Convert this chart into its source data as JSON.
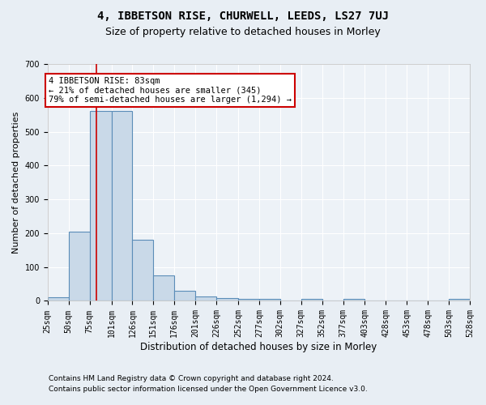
{
  "title": "4, IBBETSON RISE, CHURWELL, LEEDS, LS27 7UJ",
  "subtitle": "Size of property relative to detached houses in Morley",
  "xlabel": "Distribution of detached houses by size in Morley",
  "ylabel": "Number of detached properties",
  "bin_edges": [
    25,
    50,
    75,
    101,
    126,
    151,
    176,
    201,
    226,
    252,
    277,
    302,
    327,
    352,
    377,
    403,
    428,
    453,
    478,
    503,
    528
  ],
  "bar_heights": [
    10,
    205,
    560,
    560,
    180,
    75,
    30,
    13,
    8,
    5,
    5,
    0,
    5,
    0,
    5,
    0,
    0,
    0,
    0,
    5
  ],
  "bar_color": "#c9d9e8",
  "bar_edge_color": "#5b8db8",
  "property_size": 83,
  "property_line_color": "#cc0000",
  "annotation_line1": "4 IBBETSON RISE: 83sqm",
  "annotation_line2": "← 21% of detached houses are smaller (345)",
  "annotation_line3": "79% of semi-detached houses are larger (1,294) →",
  "annotation_box_color": "#cc0000",
  "ylim": [
    0,
    700
  ],
  "yticks": [
    0,
    100,
    200,
    300,
    400,
    500,
    600,
    700
  ],
  "footer1": "Contains HM Land Registry data © Crown copyright and database right 2024.",
  "footer2": "Contains public sector information licensed under the Open Government Licence v3.0.",
  "bg_color": "#e8eef4",
  "plot_bg_color": "#edf2f7",
  "grid_color": "#ffffff",
  "title_fontsize": 10,
  "subtitle_fontsize": 9,
  "ylabel_fontsize": 8,
  "xlabel_fontsize": 8.5,
  "tick_fontsize": 7,
  "annot_fontsize": 7.5,
  "footer_fontsize": 6.5
}
